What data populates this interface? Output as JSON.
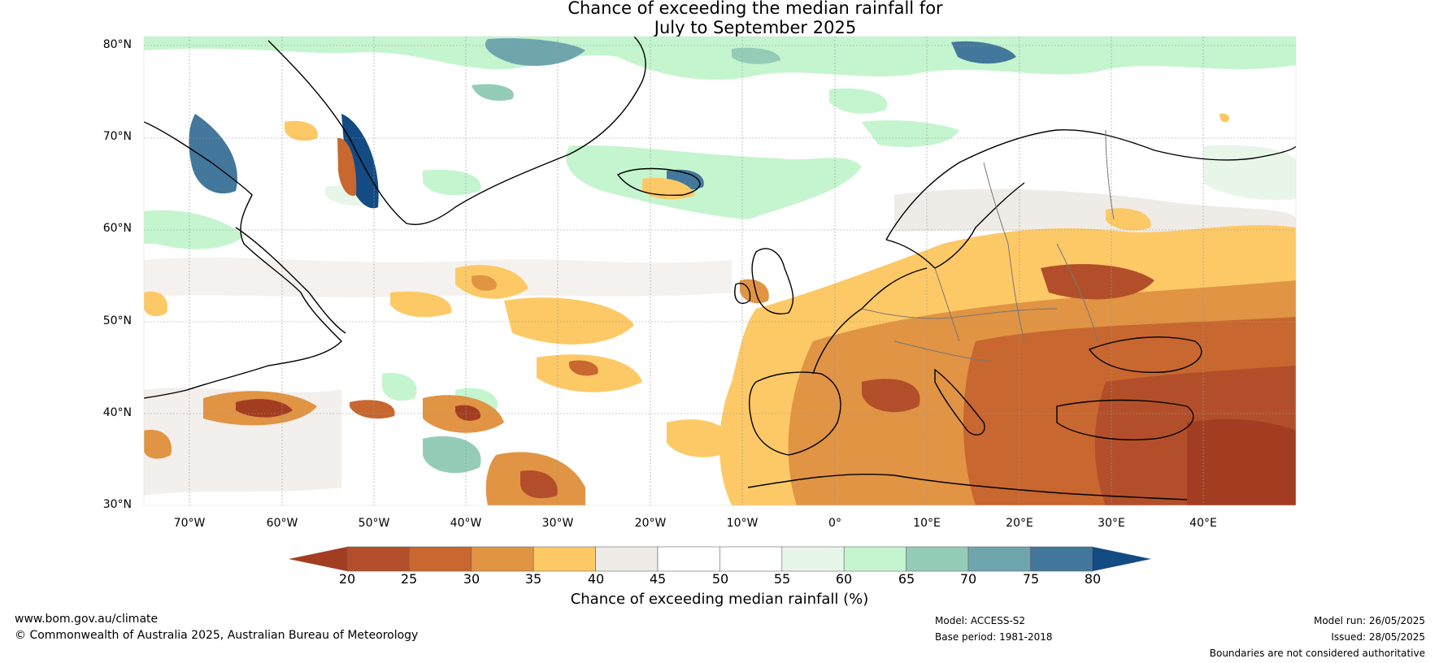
{
  "title": {
    "line1": "Chance of exceeding the median rainfall for",
    "line2": "July to September 2025"
  },
  "axes": {
    "lat_ticks": [
      "80°N",
      "70°N",
      "60°N",
      "50°N",
      "40°N",
      "30°N"
    ],
    "lon_ticks": [
      "70°W",
      "60°W",
      "50°W",
      "40°W",
      "30°W",
      "20°W",
      "10°W",
      "0°",
      "10°E",
      "20°E",
      "30°E",
      "40°E"
    ],
    "lat_range": [
      30,
      81
    ],
    "lon_range": [
      -75,
      50
    ]
  },
  "colorbar": {
    "label": "Chance of exceeding median rainfall (%)",
    "ticks": [
      "20",
      "25",
      "30",
      "35",
      "40",
      "45",
      "50",
      "55",
      "60",
      "65",
      "70",
      "75",
      "80"
    ],
    "colors": [
      "#a33d22",
      "#b24f2a",
      "#c8672f",
      "#e09444",
      "#fdc966",
      "#efebe7",
      "#ffffff",
      "#ffffff",
      "#e8f6ea",
      "#c4f5cf",
      "#95ccb8",
      "#6fa6ad",
      "#43779b",
      "#134b82"
    ]
  },
  "footer": {
    "url": "www.bom.gov.au/climate",
    "copyright": "© Commonwealth of Australia 2025, Australian Bureau of Meteorology",
    "model": "Model: ACCESS-S2",
    "base_period": "Base period: 1981-2018",
    "model_run": "Model run: 26/05/2025",
    "issued": "Issued: 28/05/2025",
    "disclaimer": "Boundaries are not considered authoritative"
  }
}
